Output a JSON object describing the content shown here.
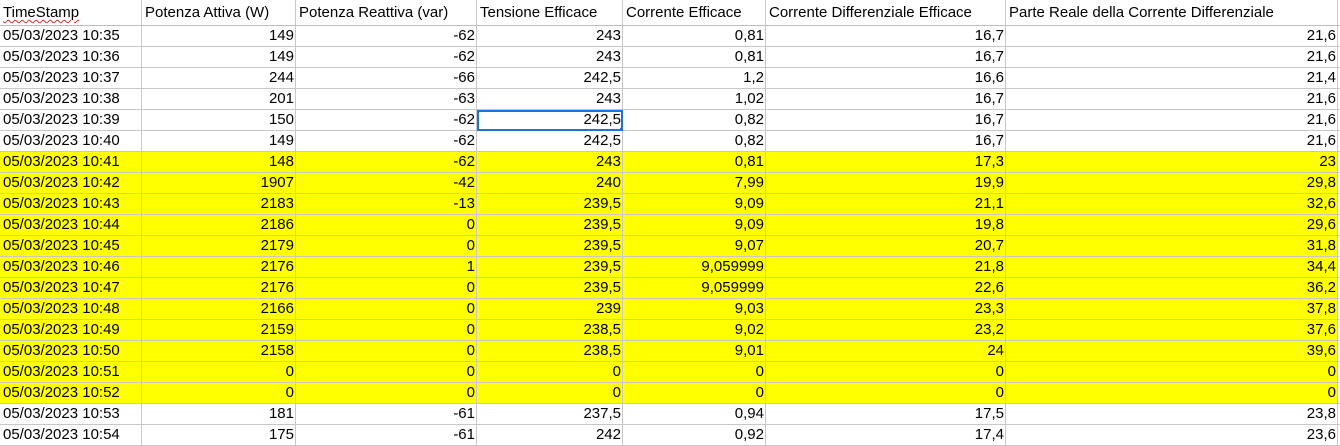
{
  "headers": [
    "TimeStamp",
    "Potenza Attiva (W)",
    "Potenza Reattiva (var)",
    "Tensione Efficace",
    "Corrente Efficace",
    "Corrente Differenziale Efficace",
    "Parte Reale della Corrente Differenziale"
  ],
  "highlight_color": "#ffff00",
  "selection_color": "#1a73d9",
  "selected_cell": {
    "row": 4,
    "col": 3
  },
  "rows": [
    {
      "hl": false,
      "cells": [
        "05/03/2023 10:35",
        "149",
        "-62",
        "243",
        "0,81",
        "16,7",
        "21,6"
      ]
    },
    {
      "hl": false,
      "cells": [
        "05/03/2023 10:36",
        "149",
        "-62",
        "243",
        "0,81",
        "16,7",
        "21,6"
      ]
    },
    {
      "hl": false,
      "cells": [
        "05/03/2023 10:37",
        "244",
        "-66",
        "242,5",
        "1,2",
        "16,6",
        "21,4"
      ]
    },
    {
      "hl": false,
      "cells": [
        "05/03/2023 10:38",
        "201",
        "-63",
        "243",
        "1,02",
        "16,7",
        "21,6"
      ]
    },
    {
      "hl": false,
      "cells": [
        "05/03/2023 10:39",
        "150",
        "-62",
        "242,5",
        "0,82",
        "16,7",
        "21,6"
      ]
    },
    {
      "hl": false,
      "cells": [
        "05/03/2023 10:40",
        "149",
        "-62",
        "242,5",
        "0,82",
        "16,7",
        "21,6"
      ]
    },
    {
      "hl": true,
      "cells": [
        "05/03/2023 10:41",
        "148",
        "-62",
        "243",
        "0,81",
        "17,3",
        "23"
      ]
    },
    {
      "hl": true,
      "cells": [
        "05/03/2023 10:42",
        "1907",
        "-42",
        "240",
        "7,99",
        "19,9",
        "29,8"
      ]
    },
    {
      "hl": true,
      "cells": [
        "05/03/2023 10:43",
        "2183",
        "-13",
        "239,5",
        "9,09",
        "21,1",
        "32,6"
      ]
    },
    {
      "hl": true,
      "cells": [
        "05/03/2023 10:44",
        "2186",
        "0",
        "239,5",
        "9,09",
        "19,8",
        "29,6"
      ]
    },
    {
      "hl": true,
      "cells": [
        "05/03/2023 10:45",
        "2179",
        "0",
        "239,5",
        "9,07",
        "20,7",
        "31,8"
      ]
    },
    {
      "hl": true,
      "cells": [
        "05/03/2023 10:46",
        "2176",
        "1",
        "239,5",
        "9,059999",
        "21,8",
        "34,4"
      ]
    },
    {
      "hl": true,
      "cells": [
        "05/03/2023 10:47",
        "2176",
        "0",
        "239,5",
        "9,059999",
        "22,6",
        "36,2"
      ]
    },
    {
      "hl": true,
      "cells": [
        "05/03/2023 10:48",
        "2166",
        "0",
        "239",
        "9,03",
        "23,3",
        "37,8"
      ]
    },
    {
      "hl": true,
      "cells": [
        "05/03/2023 10:49",
        "2159",
        "0",
        "238,5",
        "9,02",
        "23,2",
        "37,6"
      ]
    },
    {
      "hl": true,
      "cells": [
        "05/03/2023 10:50",
        "2158",
        "0",
        "238,5",
        "9,01",
        "24",
        "39,6"
      ]
    },
    {
      "hl": true,
      "cells": [
        "05/03/2023 10:51",
        "0",
        "0",
        "0",
        "0",
        "0",
        "0"
      ]
    },
    {
      "hl": true,
      "cells": [
        "05/03/2023 10:52",
        "0",
        "0",
        "0",
        "0",
        "0",
        "0"
      ]
    },
    {
      "hl": false,
      "cells": [
        "05/03/2023 10:53",
        "181",
        "-61",
        "237,5",
        "0,94",
        "17,5",
        "23,8"
      ]
    },
    {
      "hl": false,
      "cells": [
        "05/03/2023 10:54",
        "175",
        "-61",
        "242",
        "0,92",
        "17,4",
        "23,6"
      ]
    }
  ]
}
